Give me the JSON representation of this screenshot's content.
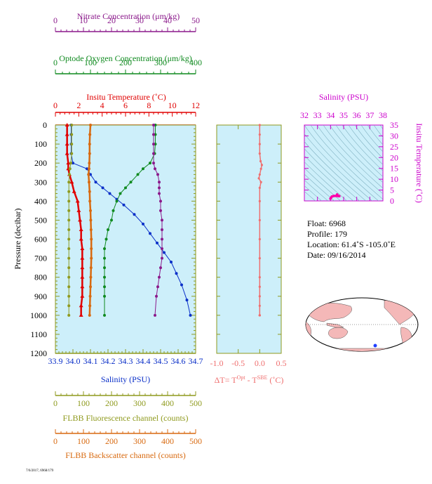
{
  "colors": {
    "panel_bg": "#cdeffa",
    "nitrate": "#8b1a8b",
    "oxygen": "#0f8a1f",
    "temperature": "#e00000",
    "salinity": "#0a2fc8",
    "fluorescence": "#8f9a1e",
    "backscatter": "#d86a10",
    "delta_t": "#ef6f6f",
    "ts_panel": "#cc00cc",
    "ts_point": "#ff00aa"
  },
  "top_axes": [
    {
      "key": "nitrate",
      "label": "Nitrate Concentration (μm/kg)",
      "range": [
        0,
        50
      ],
      "ticks": [
        "0",
        "10",
        "20",
        "30",
        "40",
        "50"
      ]
    },
    {
      "key": "oxygen",
      "label": "Optode Oxygen Concentration (μm/kg)",
      "range": [
        0,
        400
      ],
      "ticks": [
        "0",
        "100",
        "200",
        "300",
        "400"
      ]
    },
    {
      "key": "temperature",
      "label": "Insitu Temperature (˚C)",
      "range": [
        0,
        12
      ],
      "ticks": [
        "0",
        "2",
        "4",
        "6",
        "8",
        "10",
        "12"
      ]
    }
  ],
  "bottom_axes": [
    {
      "key": "salinity",
      "label": "Salinity (PSU)",
      "range": [
        33.9,
        34.7
      ],
      "ticks": [
        "33.9",
        "34.0",
        "34.1",
        "34.2",
        "34.3",
        "34.4",
        "34.5",
        "34.6",
        "34.7"
      ]
    },
    {
      "key": "fluorescence",
      "label": "FLBB Fluorescence channel (counts)",
      "range": [
        0,
        500
      ],
      "ticks": [
        "0",
        "100",
        "200",
        "300",
        "400",
        "500"
      ]
    },
    {
      "key": "backscatter",
      "label": "FLBB Backscatter channel (counts)",
      "range": [
        0,
        500
      ],
      "ticks": [
        "0",
        "100",
        "200",
        "300",
        "400",
        "500"
      ]
    }
  ],
  "pressure_axis": {
    "label": "Pressure (decibar)",
    "range": [
      0,
      1200
    ],
    "ticks": [
      "0",
      "100",
      "200",
      "300",
      "400",
      "500",
      "600",
      "700",
      "800",
      "900",
      "1000",
      "1100",
      "1200"
    ]
  },
  "delta_axis": {
    "label_prefix": "ΔT= T",
    "label_sup1": "Opt",
    "label_mid": " - T",
    "label_sup2": "SBE",
    "label_suffix": " (˚C)",
    "range": [
      -1.0,
      0.5
    ],
    "ticks": [
      "-1.0",
      "-0.5",
      "0.0",
      "0.5"
    ]
  },
  "ts_panel": {
    "title": "Salinity (PSU)",
    "xticks": [
      "32",
      "33",
      "34",
      "35",
      "36",
      "37",
      "38"
    ],
    "xrange": [
      32,
      38
    ],
    "ylabel": "Insitu Temperature (˚C)",
    "yticks": [
      "0",
      "5",
      "10",
      "15",
      "20",
      "25",
      "30",
      "35"
    ],
    "yrange": [
      0,
      35
    ]
  },
  "float_info": {
    "float": "Float:  6968",
    "profile": "Profile:  179",
    "location": "Location:  61.4˚S  -105.0˚E",
    "date": "Date:  09/16/2014"
  },
  "footer_note": "7/6/2017, 6968/179",
  "chart_data": [
    {
      "type": "line",
      "title": "",
      "y_axis": "Pressure (decibar)",
      "ylim": [
        0,
        1200
      ],
      "y_inverted": true,
      "series": [
        {
          "name": "Insitu Temperature (˚C)",
          "axis": "temperature",
          "x": [
            1.0,
            1.0,
            1.0,
            1.0,
            1.1,
            1.1,
            1.2,
            1.4,
            1.6,
            1.9,
            2.0,
            2.1,
            2.2,
            2.2,
            2.3,
            2.3,
            2.3,
            2.3,
            2.3,
            2.3,
            2.2,
            2.2
          ],
          "y": [
            0,
            50,
            100,
            150,
            200,
            230,
            260,
            300,
            350,
            400,
            450,
            500,
            550,
            600,
            650,
            700,
            750,
            800,
            850,
            900,
            950,
            1000
          ]
        },
        {
          "name": "Salinity (PSU)",
          "axis": "salinity",
          "x": [
            33.99,
            33.99,
            33.99,
            33.99,
            34.0,
            34.08,
            34.1,
            34.13,
            34.17,
            34.21,
            34.25,
            34.29,
            34.35,
            34.4,
            34.44,
            34.48,
            34.52,
            34.56,
            34.59,
            34.62,
            34.65,
            34.67
          ],
          "y": [
            0,
            50,
            100,
            150,
            200,
            230,
            260,
            300,
            330,
            360,
            390,
            420,
            470,
            520,
            570,
            620,
            670,
            720,
            780,
            840,
            920,
            1000
          ]
        },
        {
          "name": "Optode Oxygen Concentration (μm/kg)",
          "axis": "oxygen",
          "x": [
            285,
            285,
            285,
            283,
            270,
            250,
            235,
            215,
            200,
            185,
            175,
            165,
            160,
            150,
            145,
            140,
            140,
            140,
            140,
            140,
            140,
            140
          ],
          "y": [
            0,
            50,
            100,
            150,
            200,
            230,
            260,
            300,
            330,
            360,
            400,
            450,
            500,
            550,
            600,
            650,
            700,
            750,
            800,
            850,
            900,
            1000
          ]
        },
        {
          "name": "Nitrate Concentration (μm/kg)",
          "axis": "nitrate",
          "x": [
            35,
            35,
            35,
            35,
            35,
            35.5,
            36.5,
            37,
            37,
            37,
            37.5,
            37.5,
            38,
            38,
            38,
            38,
            38,
            37.5,
            37,
            36.5,
            36,
            35.5
          ],
          "y": [
            0,
            50,
            100,
            150,
            200,
            230,
            260,
            300,
            330,
            360,
            400,
            450,
            500,
            550,
            600,
            650,
            700,
            750,
            800,
            850,
            900,
            1000
          ]
        },
        {
          "name": "FLBB Fluorescence channel (counts)",
          "axis": "fluorescence",
          "x": [
            58,
            58,
            58,
            58,
            55,
            52,
            50,
            48,
            48,
            48,
            48,
            48,
            48,
            48,
            48,
            48,
            48,
            48,
            48,
            48,
            48,
            48
          ],
          "y": [
            0,
            50,
            100,
            150,
            200,
            230,
            260,
            300,
            350,
            400,
            450,
            500,
            550,
            600,
            650,
            700,
            750,
            800,
            850,
            900,
            950,
            1000
          ]
        },
        {
          "name": "FLBB Backscatter channel (counts)",
          "axis": "backscatter",
          "x": [
            125,
            123,
            122,
            122,
            121,
            120,
            118,
            120,
            122,
            123,
            125,
            126,
            127,
            128,
            128,
            128,
            127,
            126,
            125,
            124,
            123,
            122
          ],
          "y": [
            0,
            50,
            100,
            150,
            200,
            230,
            260,
            300,
            350,
            400,
            450,
            500,
            550,
            600,
            650,
            700,
            750,
            800,
            850,
            900,
            950,
            1000
          ]
        }
      ]
    },
    {
      "type": "line",
      "title": "",
      "xlabel": "ΔT= T Opt - T SBE (˚C)",
      "xlim": [
        -1.0,
        0.5
      ],
      "ylim": [
        0,
        1200
      ],
      "series": [
        {
          "name": "ΔT",
          "x": [
            0.0,
            0.0,
            0.0,
            0.0,
            0.02,
            0.05,
            0.03,
            0.0,
            -0.02,
            0.03,
            0.0,
            0.0,
            0.0,
            0.0,
            0.0,
            0.0,
            0.0,
            0.0,
            0.0,
            0.0,
            0.0,
            0.0
          ],
          "y": [
            0,
            50,
            100,
            150,
            190,
            210,
            230,
            260,
            280,
            300,
            330,
            400,
            500,
            600,
            700,
            800,
            850,
            900,
            950,
            1000,
            1000,
            1000
          ]
        }
      ]
    },
    {
      "type": "scatter",
      "title": "Salinity (PSU)",
      "xlim": [
        32,
        38
      ],
      "ylim": [
        0,
        35
      ],
      "series": [
        {
          "name": "T-S",
          "x": [
            33.99,
            34.0,
            34.05,
            34.1,
            34.2,
            34.3,
            34.4,
            34.5,
            34.6,
            34.67,
            34.5
          ],
          "y": [
            1.0,
            1.1,
            1.6,
            2.0,
            2.2,
            2.3,
            2.3,
            2.3,
            2.2,
            2.2,
            3.0
          ]
        }
      ]
    }
  ]
}
